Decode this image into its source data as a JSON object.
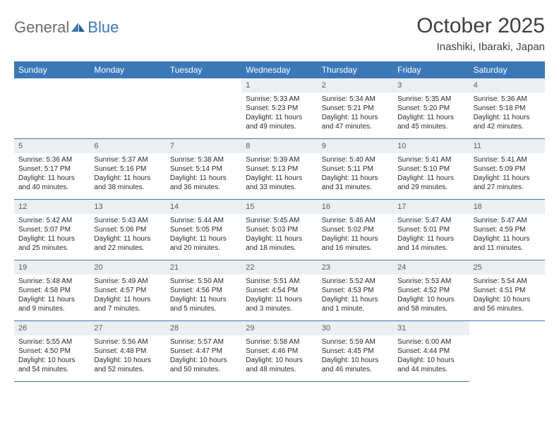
{
  "logo": {
    "general": "General",
    "blue": "Blue"
  },
  "title": "October 2025",
  "location": "Inashiki, Ibaraki, Japan",
  "colors": {
    "header_bg": "#3b78b8",
    "header_text": "#ffffff",
    "daynum_bg": "#eceff1",
    "border": "#3b78b8",
    "text": "#2a2a2a",
    "title": "#3f3f3f"
  },
  "weekdays": [
    "Sunday",
    "Monday",
    "Tuesday",
    "Wednesday",
    "Thursday",
    "Friday",
    "Saturday"
  ],
  "leading_blanks": 3,
  "days": [
    {
      "n": 1,
      "sunrise": "5:33 AM",
      "sunset": "5:23 PM",
      "daylight": "11 hours and 49 minutes."
    },
    {
      "n": 2,
      "sunrise": "5:34 AM",
      "sunset": "5:21 PM",
      "daylight": "11 hours and 47 minutes."
    },
    {
      "n": 3,
      "sunrise": "5:35 AM",
      "sunset": "5:20 PM",
      "daylight": "11 hours and 45 minutes."
    },
    {
      "n": 4,
      "sunrise": "5:36 AM",
      "sunset": "5:18 PM",
      "daylight": "11 hours and 42 minutes."
    },
    {
      "n": 5,
      "sunrise": "5:36 AM",
      "sunset": "5:17 PM",
      "daylight": "11 hours and 40 minutes."
    },
    {
      "n": 6,
      "sunrise": "5:37 AM",
      "sunset": "5:16 PM",
      "daylight": "11 hours and 38 minutes."
    },
    {
      "n": 7,
      "sunrise": "5:38 AM",
      "sunset": "5:14 PM",
      "daylight": "11 hours and 36 minutes."
    },
    {
      "n": 8,
      "sunrise": "5:39 AM",
      "sunset": "5:13 PM",
      "daylight": "11 hours and 33 minutes."
    },
    {
      "n": 9,
      "sunrise": "5:40 AM",
      "sunset": "5:11 PM",
      "daylight": "11 hours and 31 minutes."
    },
    {
      "n": 10,
      "sunrise": "5:41 AM",
      "sunset": "5:10 PM",
      "daylight": "11 hours and 29 minutes."
    },
    {
      "n": 11,
      "sunrise": "5:41 AM",
      "sunset": "5:09 PM",
      "daylight": "11 hours and 27 minutes."
    },
    {
      "n": 12,
      "sunrise": "5:42 AM",
      "sunset": "5:07 PM",
      "daylight": "11 hours and 25 minutes."
    },
    {
      "n": 13,
      "sunrise": "5:43 AM",
      "sunset": "5:06 PM",
      "daylight": "11 hours and 22 minutes."
    },
    {
      "n": 14,
      "sunrise": "5:44 AM",
      "sunset": "5:05 PM",
      "daylight": "11 hours and 20 minutes."
    },
    {
      "n": 15,
      "sunrise": "5:45 AM",
      "sunset": "5:03 PM",
      "daylight": "11 hours and 18 minutes."
    },
    {
      "n": 16,
      "sunrise": "5:46 AM",
      "sunset": "5:02 PM",
      "daylight": "11 hours and 16 minutes."
    },
    {
      "n": 17,
      "sunrise": "5:47 AM",
      "sunset": "5:01 PM",
      "daylight": "11 hours and 14 minutes."
    },
    {
      "n": 18,
      "sunrise": "5:47 AM",
      "sunset": "4:59 PM",
      "daylight": "11 hours and 11 minutes."
    },
    {
      "n": 19,
      "sunrise": "5:48 AM",
      "sunset": "4:58 PM",
      "daylight": "11 hours and 9 minutes."
    },
    {
      "n": 20,
      "sunrise": "5:49 AM",
      "sunset": "4:57 PM",
      "daylight": "11 hours and 7 minutes."
    },
    {
      "n": 21,
      "sunrise": "5:50 AM",
      "sunset": "4:56 PM",
      "daylight": "11 hours and 5 minutes."
    },
    {
      "n": 22,
      "sunrise": "5:51 AM",
      "sunset": "4:54 PM",
      "daylight": "11 hours and 3 minutes."
    },
    {
      "n": 23,
      "sunrise": "5:52 AM",
      "sunset": "4:53 PM",
      "daylight": "11 hours and 1 minute."
    },
    {
      "n": 24,
      "sunrise": "5:53 AM",
      "sunset": "4:52 PM",
      "daylight": "10 hours and 58 minutes."
    },
    {
      "n": 25,
      "sunrise": "5:54 AM",
      "sunset": "4:51 PM",
      "daylight": "10 hours and 56 minutes."
    },
    {
      "n": 26,
      "sunrise": "5:55 AM",
      "sunset": "4:50 PM",
      "daylight": "10 hours and 54 minutes."
    },
    {
      "n": 27,
      "sunrise": "5:56 AM",
      "sunset": "4:48 PM",
      "daylight": "10 hours and 52 minutes."
    },
    {
      "n": 28,
      "sunrise": "5:57 AM",
      "sunset": "4:47 PM",
      "daylight": "10 hours and 50 minutes."
    },
    {
      "n": 29,
      "sunrise": "5:58 AM",
      "sunset": "4:46 PM",
      "daylight": "10 hours and 48 minutes."
    },
    {
      "n": 30,
      "sunrise": "5:59 AM",
      "sunset": "4:45 PM",
      "daylight": "10 hours and 46 minutes."
    },
    {
      "n": 31,
      "sunrise": "6:00 AM",
      "sunset": "4:44 PM",
      "daylight": "10 hours and 44 minutes."
    }
  ],
  "labels": {
    "sunrise": "Sunrise:",
    "sunset": "Sunset:",
    "daylight": "Daylight:"
  }
}
